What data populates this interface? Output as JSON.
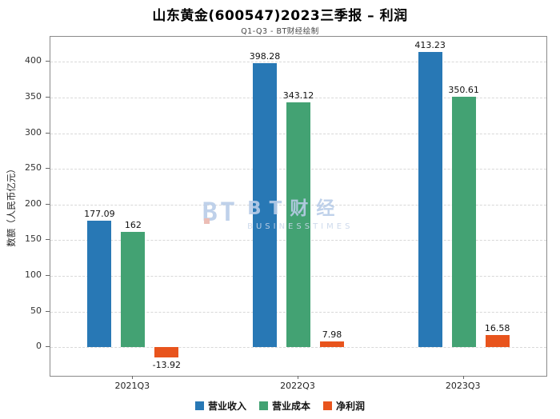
{
  "watermark": {
    "logo": "BT",
    "brand": "BT财经",
    "sub": "BUSINESSTIMES"
  },
  "chart_data": {
    "type": "bar",
    "title": "山东黄金(600547)2023三季报 – 利润",
    "subtitle": "Q1-Q3 - BT财经绘制",
    "ylabel": "数额（人民币亿元）",
    "categories": [
      "2021Q3",
      "2022Q3",
      "2023Q3"
    ],
    "series": [
      {
        "name": "营业收入",
        "color": "#2878b5",
        "values": [
          177.09,
          398.28,
          413.23
        ],
        "labels": [
          "177.09",
          "398.28",
          "413.23"
        ]
      },
      {
        "name": "营业成本",
        "color": "#43a273",
        "values": [
          162,
          343.12,
          350.61
        ],
        "labels": [
          "162",
          "343.12",
          "350.61"
        ]
      },
      {
        "name": "净利润",
        "color": "#e8541d",
        "values": [
          -13.92,
          7.98,
          16.58
        ],
        "labels": [
          "-13.92",
          "7.98",
          "16.58"
        ]
      }
    ],
    "ylim": [
      -40,
      435
    ],
    "yticks": [
      0,
      50,
      100,
      150,
      200,
      250,
      300,
      350,
      400
    ],
    "grid": true,
    "grid_style": "dashed",
    "legend_position": "bottom"
  }
}
